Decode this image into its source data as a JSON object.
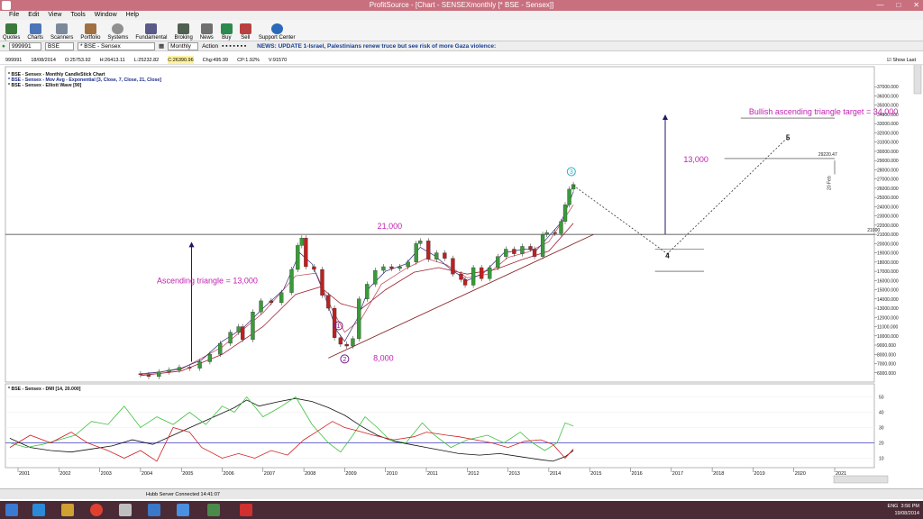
{
  "window": {
    "title": "ProfitSource - [Chart - SENSEXmonthly [* BSE - Sensex]]"
  },
  "menu": [
    "File",
    "Edit",
    "View",
    "Tools",
    "Window",
    "Help"
  ],
  "toolbar": [
    "Quotes",
    "Charts",
    "Scanners",
    "Portfolio",
    "Systems",
    "Fundamental",
    "Broking",
    "News",
    "Buy",
    "Sell",
    "Support Center"
  ],
  "symbol_bar": {
    "code": "999991",
    "exchange": "BSE",
    "name": "* BSE - Sensex",
    "period": "Monthly",
    "action": "Action",
    "news": "NEWS: UPDATE 1-Israel, Palestinians renew truce but see risk of more Gaza violence:"
  },
  "info_bar": {
    "code": "999991",
    "date": "18/08/2014",
    "open": "O:25753.92",
    "high": "H:26413.11",
    "low": "L:25232.82",
    "close": "C:26390.96",
    "change": "Chg:495.99",
    "change_pct": "CP:1.92%",
    "volume": "V:91570",
    "show_last": "Show Last"
  },
  "chart_data": {
    "type": "line",
    "legend": [
      "* BSE - Sensex - Monthly CandleStick Chart",
      "* BSE - Sensex - Mov Avg - Exponential [3, Close, 7, Close, 21, Close]",
      "* BSE - Sensex - Elliott Wave [90]"
    ],
    "x_ticks": [
      "2001",
      "2002",
      "2003",
      "2004",
      "2005",
      "2006",
      "2007",
      "2008",
      "2009",
      "2010",
      "2011",
      "2012",
      "2013",
      "2014",
      "2015",
      "2016",
      "2017",
      "2018",
      "2019",
      "2020",
      "2021"
    ],
    "y_ticks": [
      "37000.000",
      "36000.000",
      "35000.000",
      "34000.000",
      "33000.000",
      "32000.000",
      "31000.000",
      "30000.000",
      "29000.000",
      "28000.000",
      "27000.000",
      "26000.000",
      "25000.000",
      "24000.000",
      "23000.000",
      "22000.000",
      "21000.000",
      "20000.000",
      "19000.000",
      "18000.000",
      "17000.000",
      "16000.000",
      "15000.000",
      "14000.000",
      "13000.000",
      "12000.000",
      "11000.000",
      "10000.000",
      "9000.000",
      "8000.000",
      "7000.000",
      "6000.000"
    ],
    "ylim": [
      5000,
      38000
    ],
    "price": [
      [
        2003.85,
        5900
      ],
      [
        2004.0,
        5800
      ],
      [
        2004.2,
        5600
      ],
      [
        2004.45,
        6100
      ],
      [
        2004.7,
        6300
      ],
      [
        2004.95,
        6600
      ],
      [
        2005.2,
        6500
      ],
      [
        2005.45,
        7200
      ],
      [
        2005.7,
        8000
      ],
      [
        2005.95,
        9200
      ],
      [
        2006.2,
        10400
      ],
      [
        2006.4,
        11000
      ],
      [
        2006.5,
        9600
      ],
      [
        2006.75,
        12600
      ],
      [
        2006.95,
        13800
      ],
      [
        2007.2,
        13600
      ],
      [
        2007.45,
        14700
      ],
      [
        2007.7,
        17200
      ],
      [
        2007.85,
        19800
      ],
      [
        2007.95,
        20600
      ],
      [
        2008.05,
        17500
      ],
      [
        2008.25,
        17200
      ],
      [
        2008.45,
        14400
      ],
      [
        2008.6,
        13000
      ],
      [
        2008.75,
        9800
      ],
      [
        2008.9,
        9100
      ],
      [
        2009.05,
        8900
      ],
      [
        2009.2,
        9700
      ],
      [
        2009.35,
        14000
      ],
      [
        2009.55,
        15600
      ],
      [
        2009.75,
        17100
      ],
      [
        2009.95,
        17500
      ],
      [
        2010.15,
        17300
      ],
      [
        2010.35,
        17500
      ],
      [
        2010.55,
        18000
      ],
      [
        2010.75,
        20000
      ],
      [
        2010.85,
        20300
      ],
      [
        2011.05,
        18300
      ],
      [
        2011.25,
        19000
      ],
      [
        2011.45,
        18400
      ],
      [
        2011.65,
        16700
      ],
      [
        2011.85,
        16100
      ],
      [
        2011.95,
        15500
      ],
      [
        2012.15,
        17400
      ],
      [
        2012.35,
        16200
      ],
      [
        2012.55,
        17400
      ],
      [
        2012.75,
        18600
      ],
      [
        2012.95,
        19400
      ],
      [
        2013.15,
        18900
      ],
      [
        2013.35,
        19700
      ],
      [
        2013.55,
        19400
      ],
      [
        2013.65,
        18600
      ],
      [
        2013.85,
        21000
      ],
      [
        2013.95,
        21200
      ],
      [
        2014.15,
        21100
      ],
      [
        2014.3,
        22400
      ],
      [
        2014.4,
        24200
      ],
      [
        2014.5,
        25900
      ],
      [
        2014.6,
        26400
      ]
    ],
    "ema_short": [
      [
        2004.0,
        5900
      ],
      [
        2004.5,
        6100
      ],
      [
        2005.0,
        6500
      ],
      [
        2005.5,
        7400
      ],
      [
        2006.0,
        9400
      ],
      [
        2006.5,
        10800
      ],
      [
        2007.0,
        13000
      ],
      [
        2007.5,
        15000
      ],
      [
        2007.9,
        19000
      ],
      [
        2008.2,
        17800
      ],
      [
        2008.5,
        14500
      ],
      [
        2008.8,
        10600
      ],
      [
        2009.0,
        9400
      ],
      [
        2009.3,
        11800
      ],
      [
        2009.6,
        15200
      ],
      [
        2010.0,
        17000
      ],
      [
        2010.5,
        17800
      ],
      [
        2010.85,
        19600
      ],
      [
        2011.2,
        18700
      ],
      [
        2011.6,
        17200
      ],
      [
        2012.0,
        16000
      ],
      [
        2012.4,
        16800
      ],
      [
        2012.9,
        19000
      ],
      [
        2013.4,
        19400
      ],
      [
        2013.7,
        19300
      ],
      [
        2014.0,
        20800
      ],
      [
        2014.3,
        22300
      ],
      [
        2014.6,
        25600
      ]
    ],
    "ema_mid": [
      [
        2004.0,
        5800
      ],
      [
        2005.0,
        6400
      ],
      [
        2006.0,
        8800
      ],
      [
        2007.0,
        12500
      ],
      [
        2007.8,
        16500
      ],
      [
        2008.3,
        16800
      ],
      [
        2008.7,
        12800
      ],
      [
        2009.0,
        10400
      ],
      [
        2009.4,
        11800
      ],
      [
        2009.9,
        15600
      ],
      [
        2010.5,
        17300
      ],
      [
        2011.0,
        18400
      ],
      [
        2011.5,
        17700
      ],
      [
        2012.0,
        16300
      ],
      [
        2012.5,
        16700
      ],
      [
        2013.0,
        18500
      ],
      [
        2013.5,
        19100
      ],
      [
        2014.0,
        20200
      ],
      [
        2014.6,
        24200
      ]
    ],
    "ema_long": [
      [
        2004.0,
        5700
      ],
      [
        2005.0,
        6200
      ],
      [
        2006.0,
        8000
      ],
      [
        2007.0,
        11000
      ],
      [
        2007.8,
        14500
      ],
      [
        2008.4,
        15300
      ],
      [
        2008.9,
        13500
      ],
      [
        2009.4,
        12900
      ],
      [
        2010.0,
        15000
      ],
      [
        2010.7,
        16900
      ],
      [
        2011.3,
        17400
      ],
      [
        2012.0,
        16700
      ],
      [
        2012.7,
        17200
      ],
      [
        2013.3,
        18200
      ],
      [
        2014.0,
        19200
      ],
      [
        2014.6,
        22200
      ]
    ],
    "annotations": [
      {
        "text": "Bullish ascending triangle target = 34,000",
        "x": 2018.9,
        "y": 34000
      },
      {
        "text": "13,000",
        "x": 2017.3,
        "y": 28800
      },
      {
        "text": "21,000",
        "x": 2009.8,
        "y": 21600
      },
      {
        "text": "Ascending triangle = 13,000",
        "x": 2004.4,
        "y": 15700
      },
      {
        "text": "8,000",
        "x": 2009.7,
        "y": 7300
      },
      {
        "text": "29220.47",
        "x": 2020.6,
        "y": 29500
      },
      {
        "text": "21000",
        "x": 2021.8,
        "y": 21300
      },
      {
        "text": "20 Feb",
        "x": 2020.9,
        "y": 25800
      }
    ],
    "wave_labels": [
      {
        "text": "1",
        "x": 2008.85,
        "y": 11100
      },
      {
        "text": "2",
        "x": 2009.0,
        "y": 7500
      },
      {
        "text": "3",
        "x": 2014.55,
        "y": 27800
      },
      {
        "text": "4",
        "x": 2016.9,
        "y": 18700
      },
      {
        "text": "5",
        "x": 2019.85,
        "y": 31500
      }
    ],
    "projection": [
      [
        2014.6,
        26300
      ],
      [
        2016.9,
        18900
      ],
      [
        2019.85,
        31500
      ]
    ]
  },
  "dmi_chart": {
    "title": "* BSE - Sensex - DMI [14, 20.000]",
    "y_ticks": [
      "50",
      "40",
      "30",
      "20",
      "10"
    ],
    "ylim": [
      5,
      55
    ],
    "adx": [
      [
        2000.8,
        23
      ],
      [
        2001.3,
        17
      ],
      [
        2001.8,
        15
      ],
      [
        2002.3,
        14
      ],
      [
        2002.8,
        16
      ],
      [
        2003.3,
        18
      ],
      [
        2003.8,
        22
      ],
      [
        2004.3,
        19
      ],
      [
        2004.8,
        25
      ],
      [
        2005.3,
        31
      ],
      [
        2005.8,
        37
      ],
      [
        2006.3,
        43
      ],
      [
        2006.6,
        48
      ],
      [
        2006.9,
        44
      ],
      [
        2007.4,
        47
      ],
      [
        2007.8,
        49
      ],
      [
        2008.2,
        47
      ],
      [
        2008.6,
        43
      ],
      [
        2009.0,
        38
      ],
      [
        2009.4,
        31
      ],
      [
        2009.8,
        25
      ],
      [
        2010.2,
        21
      ],
      [
        2010.6,
        19
      ],
      [
        2011.0,
        17
      ],
      [
        2011.4,
        15
      ],
      [
        2011.8,
        13
      ],
      [
        2012.3,
        12
      ],
      [
        2012.8,
        13
      ],
      [
        2013.3,
        11
      ],
      [
        2013.8,
        9
      ],
      [
        2014.1,
        8
      ],
      [
        2014.4,
        11
      ],
      [
        2014.6,
        15
      ]
    ],
    "plus_di": [
      [
        2000.8,
        20
      ],
      [
        2001.2,
        17
      ],
      [
        2001.6,
        19
      ],
      [
        2002.0,
        22
      ],
      [
        2002.4,
        25
      ],
      [
        2002.8,
        34
      ],
      [
        2003.2,
        32
      ],
      [
        2003.6,
        44
      ],
      [
        2004.0,
        30
      ],
      [
        2004.4,
        37
      ],
      [
        2004.8,
        32
      ],
      [
        2005.2,
        40
      ],
      [
        2005.6,
        32
      ],
      [
        2006.0,
        44
      ],
      [
        2006.3,
        40
      ],
      [
        2006.6,
        50
      ],
      [
        2007.0,
        37
      ],
      [
        2007.4,
        43
      ],
      [
        2007.8,
        50
      ],
      [
        2008.2,
        32
      ],
      [
        2008.6,
        20
      ],
      [
        2008.9,
        14
      ],
      [
        2009.2,
        25
      ],
      [
        2009.5,
        37
      ],
      [
        2009.8,
        30
      ],
      [
        2010.1,
        22
      ],
      [
        2010.5,
        20
      ],
      [
        2010.9,
        33
      ],
      [
        2011.2,
        25
      ],
      [
        2011.6,
        17
      ],
      [
        2012.0,
        22
      ],
      [
        2012.5,
        25
      ],
      [
        2012.9,
        20
      ],
      [
        2013.3,
        27
      ],
      [
        2013.6,
        20
      ],
      [
        2013.9,
        15
      ],
      [
        2014.2,
        20
      ],
      [
        2014.4,
        33
      ],
      [
        2014.6,
        31
      ]
    ],
    "minus_di": [
      [
        2000.8,
        17
      ],
      [
        2001.3,
        25
      ],
      [
        2001.8,
        20
      ],
      [
        2002.3,
        27
      ],
      [
        2002.7,
        20
      ],
      [
        2003.2,
        15
      ],
      [
        2003.6,
        10
      ],
      [
        2004.0,
        15
      ],
      [
        2004.4,
        8
      ],
      [
        2004.8,
        30
      ],
      [
        2005.2,
        27
      ],
      [
        2005.5,
        17
      ],
      [
        2006.0,
        10
      ],
      [
        2006.4,
        13
      ],
      [
        2006.8,
        10
      ],
      [
        2007.2,
        15
      ],
      [
        2007.6,
        12
      ],
      [
        2008.0,
        22
      ],
      [
        2008.3,
        27
      ],
      [
        2008.7,
        34
      ],
      [
        2009.0,
        30
      ],
      [
        2009.3,
        28
      ],
      [
        2009.7,
        25
      ],
      [
        2010.2,
        22
      ],
      [
        2010.7,
        24
      ],
      [
        2011.0,
        27
      ],
      [
        2011.5,
        25
      ],
      [
        2011.8,
        24
      ],
      [
        2012.2,
        22
      ],
      [
        2012.6,
        20
      ],
      [
        2013.0,
        17
      ],
      [
        2013.4,
        21
      ],
      [
        2013.8,
        22
      ],
      [
        2014.1,
        19
      ],
      [
        2014.4,
        10
      ],
      [
        2014.6,
        16
      ]
    ]
  },
  "status": "Hubb Server Connected 14:41:07",
  "clock": {
    "time": "3:56 PM",
    "date": "19/08/2014",
    "lang": "ENG"
  }
}
